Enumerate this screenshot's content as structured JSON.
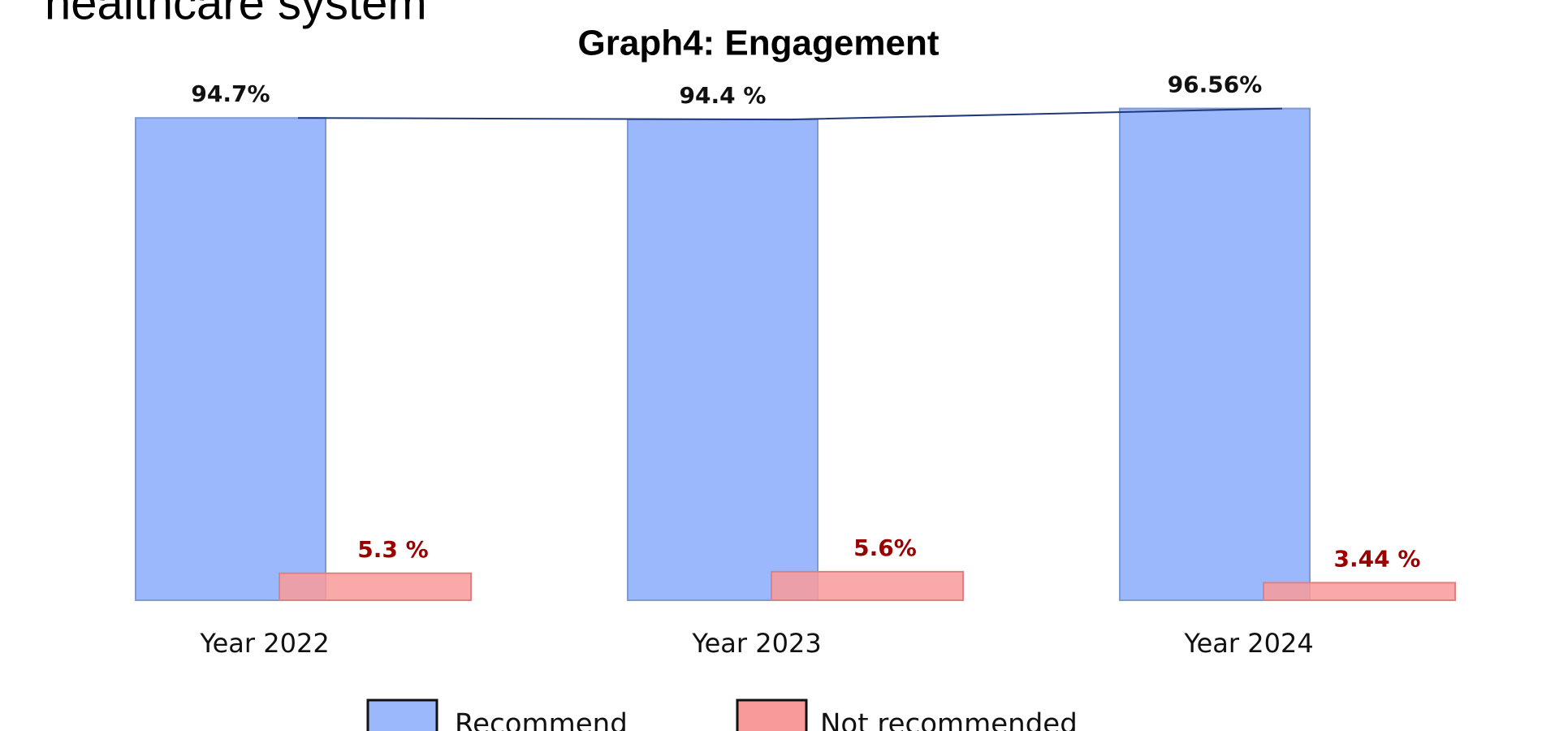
{
  "heading": "healthcare system",
  "chart_data": {
    "type": "bar",
    "title": "Graph4: Engagement",
    "categories": [
      "Year 2022",
      "Year 2023",
      "Year 2024"
    ],
    "series": [
      {
        "name": "Recommend",
        "color": "#9ab8fb",
        "values": [
          94.7,
          94.4,
          96.56
        ],
        "value_labels": [
          "94.7%",
          "94.4 %",
          "96.56%"
        ]
      },
      {
        "name": "Not recommended",
        "color": "#f99a9a",
        "values": [
          5.3,
          5.6,
          3.44
        ],
        "value_labels": [
          "5.3 %",
          "5.6%",
          "3.44 %"
        ]
      }
    ],
    "ylim": [
      0,
      100
    ]
  }
}
